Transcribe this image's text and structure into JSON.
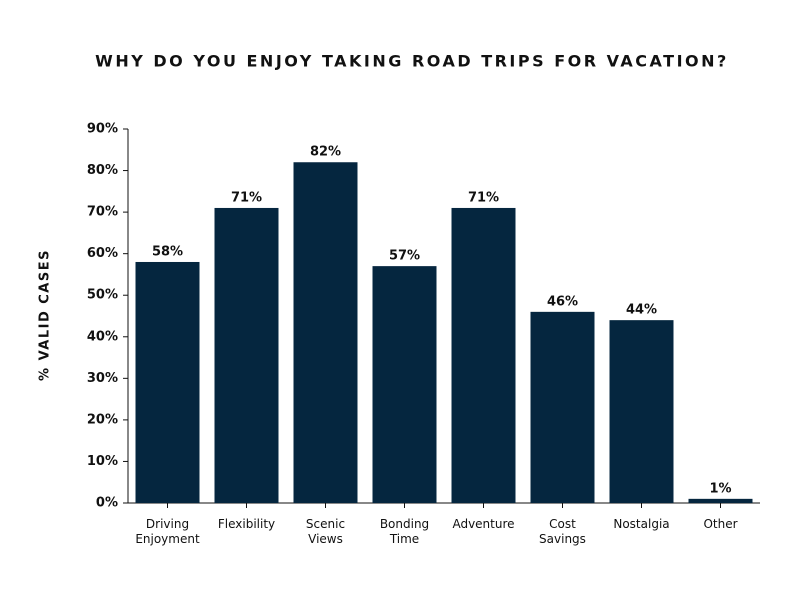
{
  "chart_data": {
    "type": "bar",
    "title": "WHY DO YOU ENJOY TAKING ROAD TRIPS FOR VACATION?",
    "y_label": "% VALID CASES",
    "categories": [
      "Driving Enjoyment",
      "Flexibility",
      "Scenic Views",
      "Bonding Time",
      "Adventure",
      "Cost Savings",
      "Nostalgia",
      "Other"
    ],
    "values": [
      58,
      71,
      82,
      57,
      71,
      46,
      44,
      1
    ],
    "value_labels": [
      "58%",
      "71%",
      "82%",
      "57%",
      "71%",
      "46%",
      "44%",
      "1%"
    ],
    "color": "#05263f",
    "ylim": [
      0,
      90
    ],
    "yticks": [
      {
        "value": 0,
        "label": "0%"
      },
      {
        "value": 10,
        "label": "10%"
      },
      {
        "value": 20,
        "label": "20%"
      },
      {
        "value": 30,
        "label": "30%"
      },
      {
        "value": 40,
        "label": "40%"
      },
      {
        "value": 50,
        "label": "50%"
      },
      {
        "value": 60,
        "label": "60%"
      },
      {
        "value": 70,
        "label": "70%"
      },
      {
        "value": 80,
        "label": "80%"
      },
      {
        "value": 90,
        "label": "90%"
      }
    ],
    "grid": false
  }
}
